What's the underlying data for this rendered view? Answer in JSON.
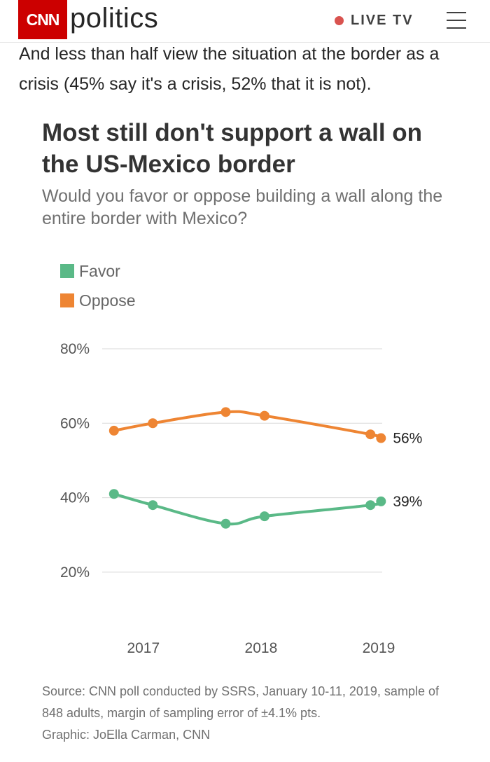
{
  "header": {
    "logo_text": "CNN",
    "section": "politics",
    "live_label": "LIVE TV",
    "icons": [
      "live-dot-icon",
      "menu-icon"
    ]
  },
  "article": {
    "intro": "And less than half view the situation at the border as a crisis (45% say it's a crisis, 52% that it is not)."
  },
  "chart": {
    "title": "Most still don't support a wall on the US-Mexico border",
    "subtitle": "Would you favor or oppose building a wall along the entire border with Mexico?",
    "source": "Source: CNN poll conducted by SSRS, January 10-11, 2019, sample of 848 adults, margin of sampling error of ±4.1% pts.",
    "credit": "Graphic: JoElla Carman, CNN"
  },
  "colors": {
    "favor": "#5ab987",
    "oppose": "#ee8533",
    "grid": "#d9d9d9",
    "brand": "#cc0000"
  },
  "chart_data": {
    "type": "line",
    "title": "Most still don't support a wall on the US-Mexico border",
    "subtitle": "Would you favor or oppose building a wall along the entire border with Mexico?",
    "xlabel": "",
    "ylabel": "",
    "x_ticks": [
      {
        "label": "2017",
        "value": 2017.0
      },
      {
        "label": "2018",
        "value": 2018.0
      },
      {
        "label": "2019",
        "value": 2019.0
      }
    ],
    "xlim": [
      2016.65,
      2019.03
    ],
    "ylim": [
      10,
      80
    ],
    "y_ticks": [
      {
        "label": "80%",
        "value": 80
      },
      {
        "label": "60%",
        "value": 60
      },
      {
        "label": "40%",
        "value": 40
      },
      {
        "label": "20%",
        "value": 20
      }
    ],
    "legend_position": "top-left",
    "series": [
      {
        "name": "Favor",
        "color": "#5ab987",
        "x": [
          2016.75,
          2017.08,
          2017.7,
          2018.03,
          2018.93,
          2019.02
        ],
        "values": [
          41,
          38,
          33,
          35,
          38,
          39
        ],
        "end_label": "39%"
      },
      {
        "name": "Oppose",
        "color": "#ee8533",
        "x": [
          2016.75,
          2017.08,
          2017.7,
          2018.03,
          2018.93,
          2019.02
        ],
        "values": [
          58,
          60,
          63,
          62,
          57,
          56
        ],
        "end_label": "56%"
      }
    ]
  }
}
